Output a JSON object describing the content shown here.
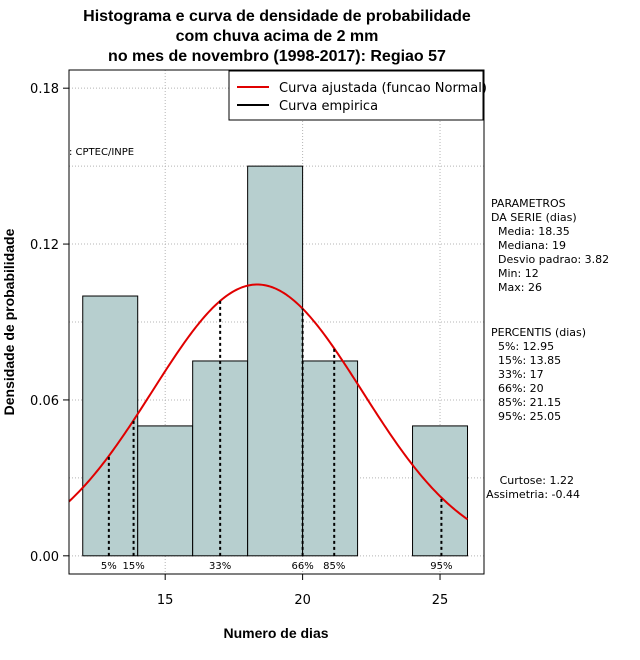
{
  "chart_data": {
    "type": "bar",
    "title_lines": [
      "Histograma e curva de densidade de probabilidade",
      "com chuva acima de 2 mm",
      "no mes de novembro (1998-2017): Regiao 57"
    ],
    "xlabel": "Numero de dias",
    "ylabel": "Densidade de probabilidade",
    "xlim": [
      11.5,
      26.6
    ],
    "ylim": [
      -0.007,
      0.187
    ],
    "x_ticks": [
      15,
      20,
      25
    ],
    "y_ticks": [
      0.0,
      0.06,
      0.12,
      0.18
    ],
    "y_tick_labels": [
      "0.00",
      "0.06",
      "0.12",
      "0.18"
    ],
    "grid": true,
    "bins": [
      {
        "start": 12,
        "end": 14,
        "density": 0.1
      },
      {
        "start": 14,
        "end": 16,
        "density": 0.05
      },
      {
        "start": 16,
        "end": 18,
        "density": 0.075
      },
      {
        "start": 18,
        "end": 20,
        "density": 0.15
      },
      {
        "start": 20,
        "end": 22,
        "density": 0.075
      },
      {
        "start": 22,
        "end": 24,
        "density": 0.0
      },
      {
        "start": 24,
        "end": 26,
        "density": 0.05
      }
    ],
    "normal_curve": {
      "mean": 18.35,
      "sd": 3.82,
      "color": "#e00000"
    },
    "bar_color": "#b7cfcf",
    "percentiles": [
      {
        "label": "5%",
        "value": 12.95
      },
      {
        "label": "15%",
        "value": 13.85
      },
      {
        "label": "33%",
        "value": 17
      },
      {
        "label": "66%",
        "value": 20
      },
      {
        "label": "85%",
        "value": 21.15
      },
      {
        "label": "95%",
        "value": 25.05
      }
    ],
    "legend": {
      "placement": "top-right",
      "entries": [
        {
          "label": "Curva ajustada (funcao Normal)",
          "color": "#e00000"
        },
        {
          "label": "Curva empirica",
          "color": "#000000"
        }
      ]
    },
    "source_label": ": CPTEC/INPE",
    "parametros_heading": [
      "PARAMETROS",
      "DA SERIE (dias)"
    ],
    "parametros": [
      "Media: 18.35",
      "Mediana: 19",
      "Desvio padrao: 3.82",
      "Min: 12",
      "Max: 26"
    ],
    "percentis_heading": "PERCENTIS (dias)",
    "percentis": [
      "5%: 12.95",
      "15%: 13.85",
      "33%: 17",
      "66%: 20",
      "85%: 21.15",
      "95%: 25.05"
    ],
    "moments": [
      "Curtose: 1.22",
      "Assimetria: -0.44"
    ]
  }
}
